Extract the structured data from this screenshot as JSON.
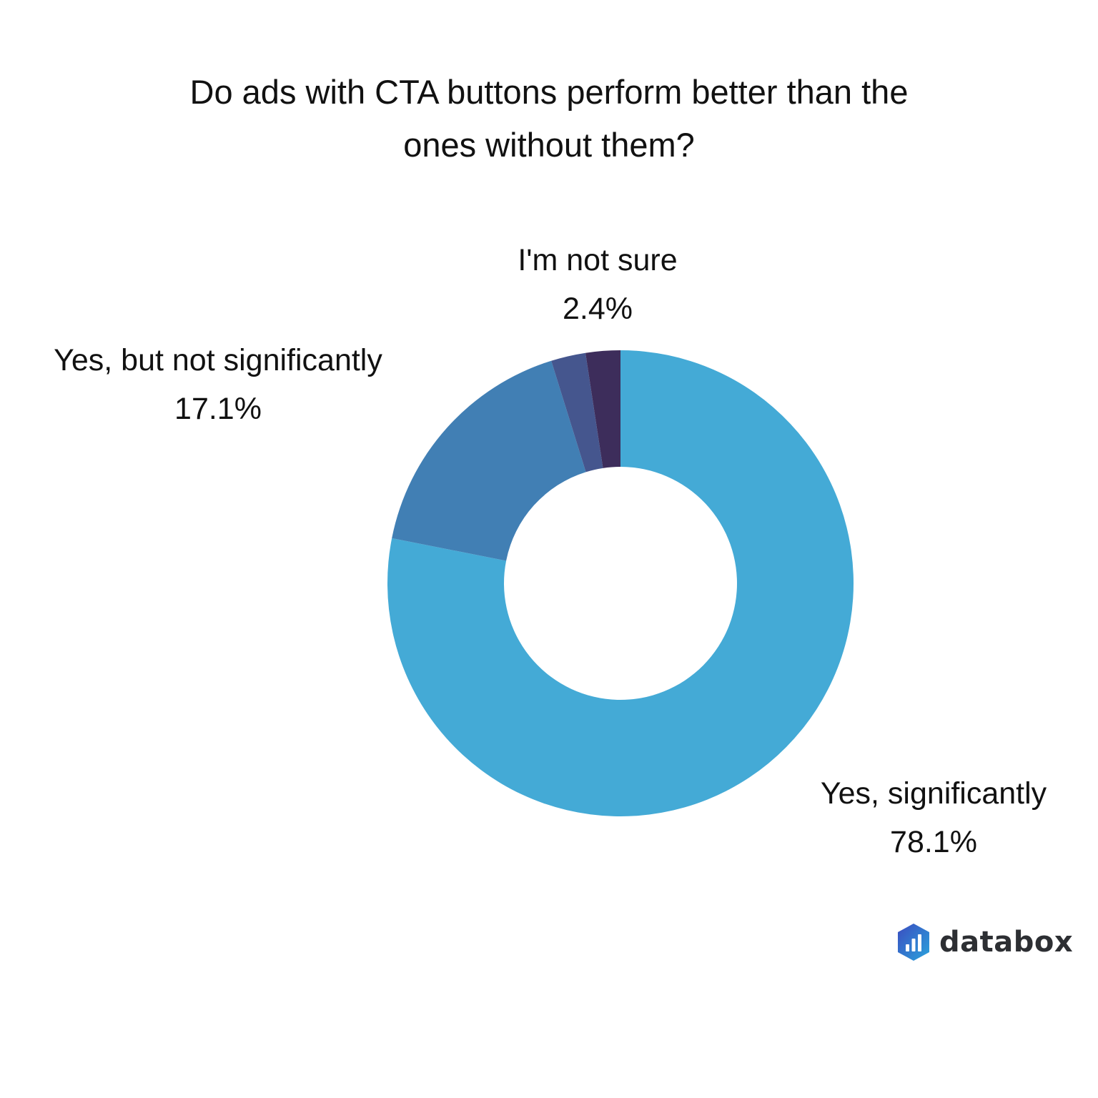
{
  "title": {
    "line1": "Do ads with CTA buttons perform better than the",
    "line2": "ones without them?"
  },
  "chart_data": {
    "type": "pie",
    "variant": "donut",
    "title": "Do ads with CTA buttons perform better than the ones without them?",
    "categories": [
      "Yes, significantly",
      "Yes, but not significantly",
      "(unlabeled)",
      "I'm not sure"
    ],
    "values": [
      78.1,
      17.1,
      2.4,
      2.4
    ],
    "colors": [
      "#44AAD6",
      "#417FB4",
      "#45568E",
      "#3D2D5B"
    ],
    "start_angle": "12 o'clock",
    "direction": "clockwise",
    "legend": "none (direct labels)",
    "labels": [
      {
        "name": "Yes, significantly",
        "value": "78.1%"
      },
      {
        "name": "Yes, but not significantly",
        "value": "17.1%"
      },
      {
        "name": "I'm not sure",
        "value": "2.4%"
      }
    ]
  },
  "labels": {
    "yes_sig": {
      "name": "Yes, significantly",
      "value": "78.1%"
    },
    "yes_not_sig": {
      "name": "Yes, but not significantly",
      "value": "17.1%"
    },
    "not_sure": {
      "name": "I'm not sure",
      "value": "2.4%"
    }
  },
  "brand": {
    "name": "databox",
    "icon": "databox-logo-icon",
    "gradient": [
      "#3b4cc0",
      "#2aa3dc"
    ]
  }
}
